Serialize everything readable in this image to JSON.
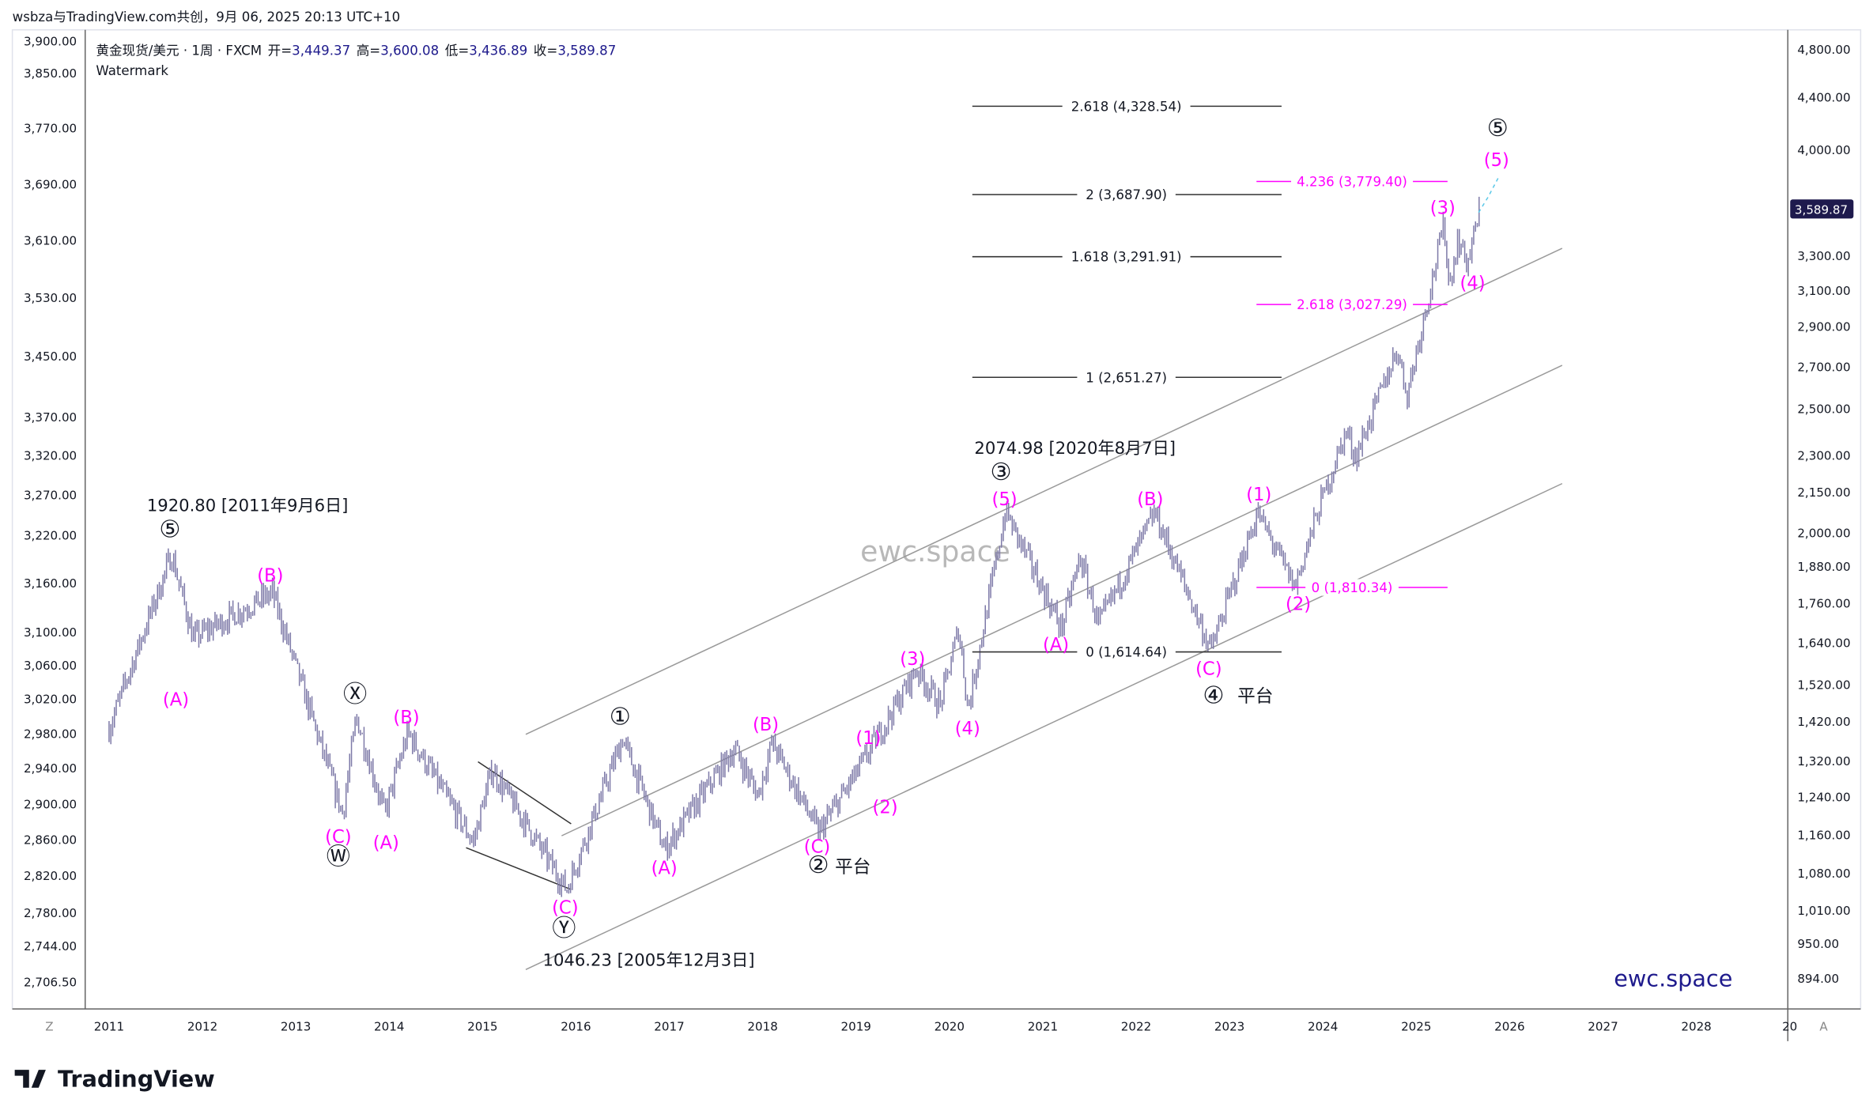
{
  "header": {
    "attribution": "wsbza与TradingView.com共创，9月 06, 2025 20:13 UTC+10",
    "symbol": "黄金现货/美元 · 1周 · FXCM",
    "open_label": "开=",
    "open": "3,449.37",
    "high_label": "高=",
    "high": "3,600.08",
    "low_label": "低=",
    "low": "3,436.89",
    "close_label": "收=",
    "close": "3,589.87",
    "watermark_label": "Watermark"
  },
  "left_axis": [
    "3,900.00",
    "3,850.00",
    "3,770.00",
    "3,690.00",
    "3,610.00",
    "3,530.00",
    "3,450.00",
    "3,370.00",
    "3,320.00",
    "3,270.00",
    "3,220.00",
    "3,160.00",
    "3,100.00",
    "3,060.00",
    "3,020.00",
    "2,980.00",
    "2,940.00",
    "2,900.00",
    "2,860.00",
    "2,820.00",
    "2,780.00",
    "2,744.00",
    "2,706.50"
  ],
  "right_axis": [
    "4,800.00",
    "4,400.00",
    "4,000.00",
    "3,300.00",
    "3,100.00",
    "2,900.00",
    "2,700.00",
    "2,500.00",
    "2,300.00",
    "2,150.00",
    "2,000.00",
    "1,880.00",
    "1,760.00",
    "1,640.00",
    "1,520.00",
    "1,420.00",
    "1,320.00",
    "1,240.00",
    "1,160.00",
    "1,080.00",
    "1,010.00",
    "950.00",
    "894.00"
  ],
  "last_price_badge": "3,589.87",
  "x_axis": [
    "2011",
    "2012",
    "2013",
    "2014",
    "2015",
    "2016",
    "2017",
    "2018",
    "2019",
    "2020",
    "2021",
    "2022",
    "2023",
    "2024",
    "2025",
    "2026",
    "2027",
    "2028",
    "20"
  ],
  "axis_buttons": {
    "zoom": "Z",
    "auto": "A"
  },
  "fib_levels": [
    "2.618 (4,328.54)",
    "2 (3,687.90)",
    "1.618 (3,291.91)",
    "1 (2,651.27)",
    "0 (1,614.64)"
  ],
  "fib_levels_magenta": [
    "4.236 (3,779.40)",
    "2.618 (3,027.29)",
    "0 (1,810.34)"
  ],
  "annotations": [
    "1920.80 [2011年9月6日]",
    "⑤",
    "(A)",
    "(B)",
    "Ⓧ",
    "(B)",
    "(C)",
    "Ⓦ",
    "(A)",
    "①",
    "(A)",
    "(B)",
    "(C)",
    "Ⓨ",
    "1046.23 [2005年12月3日]",
    "(C)",
    "②",
    "平台",
    "(1)",
    "(2)",
    "(3)",
    "(4)",
    "2074.98 [2020年8月7日]",
    "③",
    "(5)",
    "(A)",
    "(B)",
    "(C)",
    "④",
    "平台",
    "(1)",
    "(2)",
    "(3)",
    "(4)",
    "(5)",
    "⑤"
  ],
  "watermark_center": "ewc.space",
  "watermark_corner": "ewc.space",
  "footer": {
    "logo": "TradingView"
  },
  "colors": {
    "bars": "#7e7aa8",
    "wave": "#ff00ff",
    "badge": "#1e1a4d",
    "brand": "#1e1a8c"
  },
  "chart_data": {
    "type": "bar",
    "title": "黄金现货/美元 · 1周 · FXCM",
    "scale": "log",
    "ylim": [
      894,
      4800
    ],
    "xlim": [
      2010.8,
      2029
    ],
    "key_points": [
      [
        2011.0,
        1400
      ],
      [
        2011.67,
        1920
      ],
      [
        2011.9,
        1650
      ],
      [
        2012.75,
        1790
      ],
      [
        2013.5,
        1200
      ],
      [
        2013.65,
        1430
      ],
      [
        2013.95,
        1200
      ],
      [
        2014.2,
        1390
      ],
      [
        2014.9,
        1140
      ],
      [
        2015.1,
        1300
      ],
      [
        2015.9,
        1046
      ],
      [
        2016.5,
        1375
      ],
      [
        2016.95,
        1125
      ],
      [
        2017.7,
        1350
      ],
      [
        2017.95,
        1240
      ],
      [
        2018.1,
        1365
      ],
      [
        2018.6,
        1160
      ],
      [
        2019.0,
        1290
      ],
      [
        2019.65,
        1560
      ],
      [
        2019.9,
        1460
      ],
      [
        2020.1,
        1680
      ],
      [
        2020.2,
        1450
      ],
      [
        2020.6,
        2075
      ],
      [
        2021.2,
        1680
      ],
      [
        2021.4,
        1910
      ],
      [
        2021.6,
        1690
      ],
      [
        2022.2,
        2070
      ],
      [
        2022.8,
        1615
      ],
      [
        2023.3,
        2070
      ],
      [
        2023.7,
        1810
      ],
      [
        2023.95,
        2080
      ],
      [
        2024.25,
        2400
      ],
      [
        2024.35,
        2290
      ],
      [
        2024.8,
        2790
      ],
      [
        2024.9,
        2560
      ],
      [
        2025.3,
        3500
      ],
      [
        2025.35,
        3120
      ],
      [
        2025.45,
        3400
      ],
      [
        2025.55,
        3250
      ],
      [
        2025.68,
        3590
      ]
    ]
  }
}
